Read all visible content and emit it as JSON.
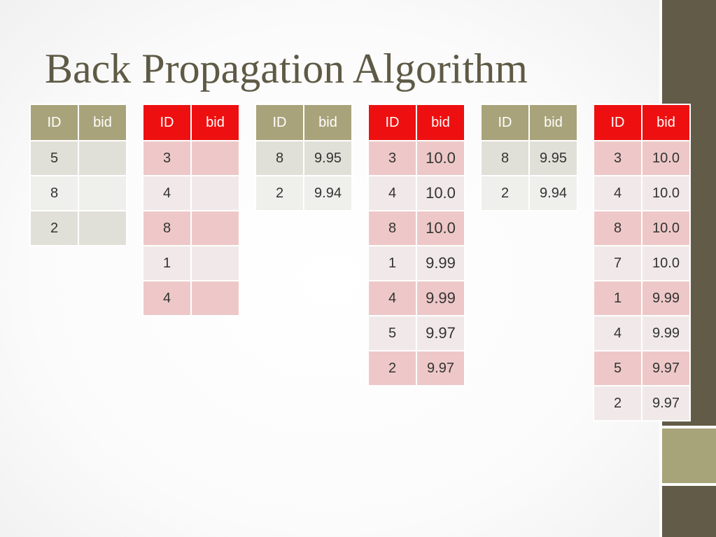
{
  "slide": {
    "title": "Back Propagation Algorithm"
  },
  "theme": {
    "title_color": "#5e5a45",
    "olive_header": "#a8a37a",
    "red_header": "#ee1010",
    "sidebar": "#625b47"
  },
  "tables": [
    {
      "headers": [
        "ID",
        "bid"
      ],
      "rows": [
        [
          "5",
          ""
        ],
        [
          "8",
          ""
        ],
        [
          "2",
          ""
        ]
      ]
    },
    {
      "headers": [
        "ID",
        "bid"
      ],
      "rows": [
        [
          "3",
          ""
        ],
        [
          "4",
          ""
        ],
        [
          "8",
          ""
        ],
        [
          "1",
          ""
        ],
        [
          "4",
          ""
        ]
      ]
    },
    {
      "headers": [
        "ID",
        "bid"
      ],
      "rows": [
        [
          "8",
          "9.95"
        ],
        [
          "2",
          "9.94"
        ]
      ]
    },
    {
      "headers": [
        "ID",
        "bid"
      ],
      "rows": [
        [
          "3",
          "10.0"
        ],
        [
          "4",
          "10.0"
        ],
        [
          "8",
          "10.0"
        ],
        [
          "1",
          "9.99"
        ],
        [
          "4",
          "9.99"
        ],
        [
          "5",
          "9.97"
        ],
        [
          "2",
          "9.97"
        ]
      ]
    },
    {
      "headers": [
        "ID",
        "bid"
      ],
      "rows": [
        [
          "8",
          "9.95"
        ],
        [
          "2",
          "9.94"
        ]
      ]
    },
    {
      "headers": [
        "ID",
        "bid"
      ],
      "rows": [
        [
          "3",
          "10.0"
        ],
        [
          "4",
          "10.0"
        ],
        [
          "8",
          "10.0"
        ],
        [
          "7",
          "10.0"
        ],
        [
          "1",
          "9.99"
        ],
        [
          "4",
          "9.99"
        ],
        [
          "5",
          "9.97"
        ],
        [
          "2",
          "9.97"
        ]
      ]
    }
  ]
}
